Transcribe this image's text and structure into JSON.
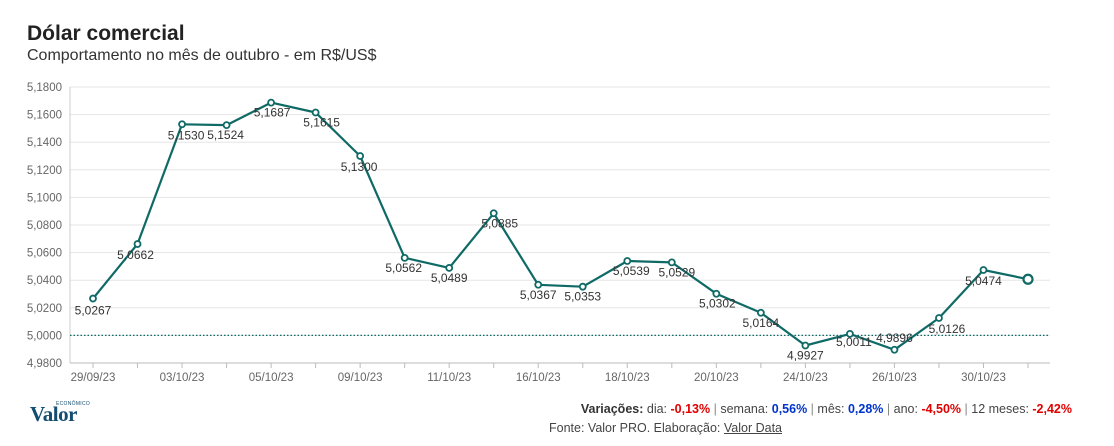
{
  "header": {
    "title": "Dólar comercial",
    "subtitle": "Comportamento no mês de outubro - em R$/US$"
  },
  "chart_data": {
    "type": "line",
    "title": "Dólar comercial",
    "subtitle": "Comportamento no mês de outubro - em R$/US$",
    "xlabel": "",
    "ylabel": "",
    "ylim": [
      4.98,
      5.18
    ],
    "yticks": [
      "5,1800",
      "5,1600",
      "5,1400",
      "5,1200",
      "5,1000",
      "5,0800",
      "5,0600",
      "5,0400",
      "5,0200",
      "5,0000",
      "4,9800"
    ],
    "ytick_values": [
      5.18,
      5.16,
      5.14,
      5.12,
      5.1,
      5.08,
      5.06,
      5.04,
      5.02,
      5.0,
      4.98
    ],
    "xticks": [
      "29/09/23",
      "03/10/23",
      "05/10/23",
      "09/10/23",
      "11/10/23",
      "16/10/23",
      "18/10/23",
      "20/10/23",
      "24/10/23",
      "26/10/23",
      "30/10/23"
    ],
    "xtick_index": [
      0,
      2,
      4,
      6,
      8,
      10,
      12,
      14,
      16,
      18,
      20
    ],
    "grid": true,
    "reference_line": 5.0,
    "series": [
      {
        "values": [
          5.0267,
          5.0662,
          5.153,
          5.1524,
          5.1687,
          5.1615,
          5.13,
          5.0562,
          5.0489,
          5.0885,
          5.0367,
          5.0353,
          5.0539,
          5.0529,
          5.0302,
          5.0164,
          4.9927,
          5.0011,
          4.9896,
          5.0126,
          5.0474,
          5.0407
        ],
        "labels": [
          "5,0267",
          "5,0662",
          "5,1530",
          "5,1524",
          "5,1687",
          "5,1615",
          "5,1300",
          "5,0562",
          "5,0489",
          "5,0885",
          "5,0367",
          "5,0353",
          "5,0539",
          "5,0529",
          "5,0302",
          "5,0164",
          "4,9927",
          "5,0011",
          "4,9896",
          "5,0126",
          "5,0474",
          ""
        ],
        "color": "#0f6a66"
      }
    ]
  },
  "footer": {
    "logo": "Valor",
    "logo_sup": "ECONÔMICO",
    "variacoes_label": "Variações:",
    "items": [
      {
        "label": "dia:",
        "value": "-0,13%",
        "sign": "neg"
      },
      {
        "label": "semana:",
        "value": "0,56%",
        "sign": "pos"
      },
      {
        "label": "mês:",
        "value": "0,28%",
        "sign": "pos"
      },
      {
        "label": "ano:",
        "value": "-4,50%",
        "sign": "neg"
      },
      {
        "label": "12 meses:",
        "value": "-2,42%",
        "sign": "neg"
      }
    ],
    "fonte_text": "Fonte: Valor PRO. Elaboração:",
    "fonte_link": "Valor Data"
  },
  "colors": {
    "line": "#0f6a66",
    "grid": "#e6e6e6",
    "reference": "#0f6a66",
    "negative": "#e10000",
    "positive": "#0033cc"
  }
}
